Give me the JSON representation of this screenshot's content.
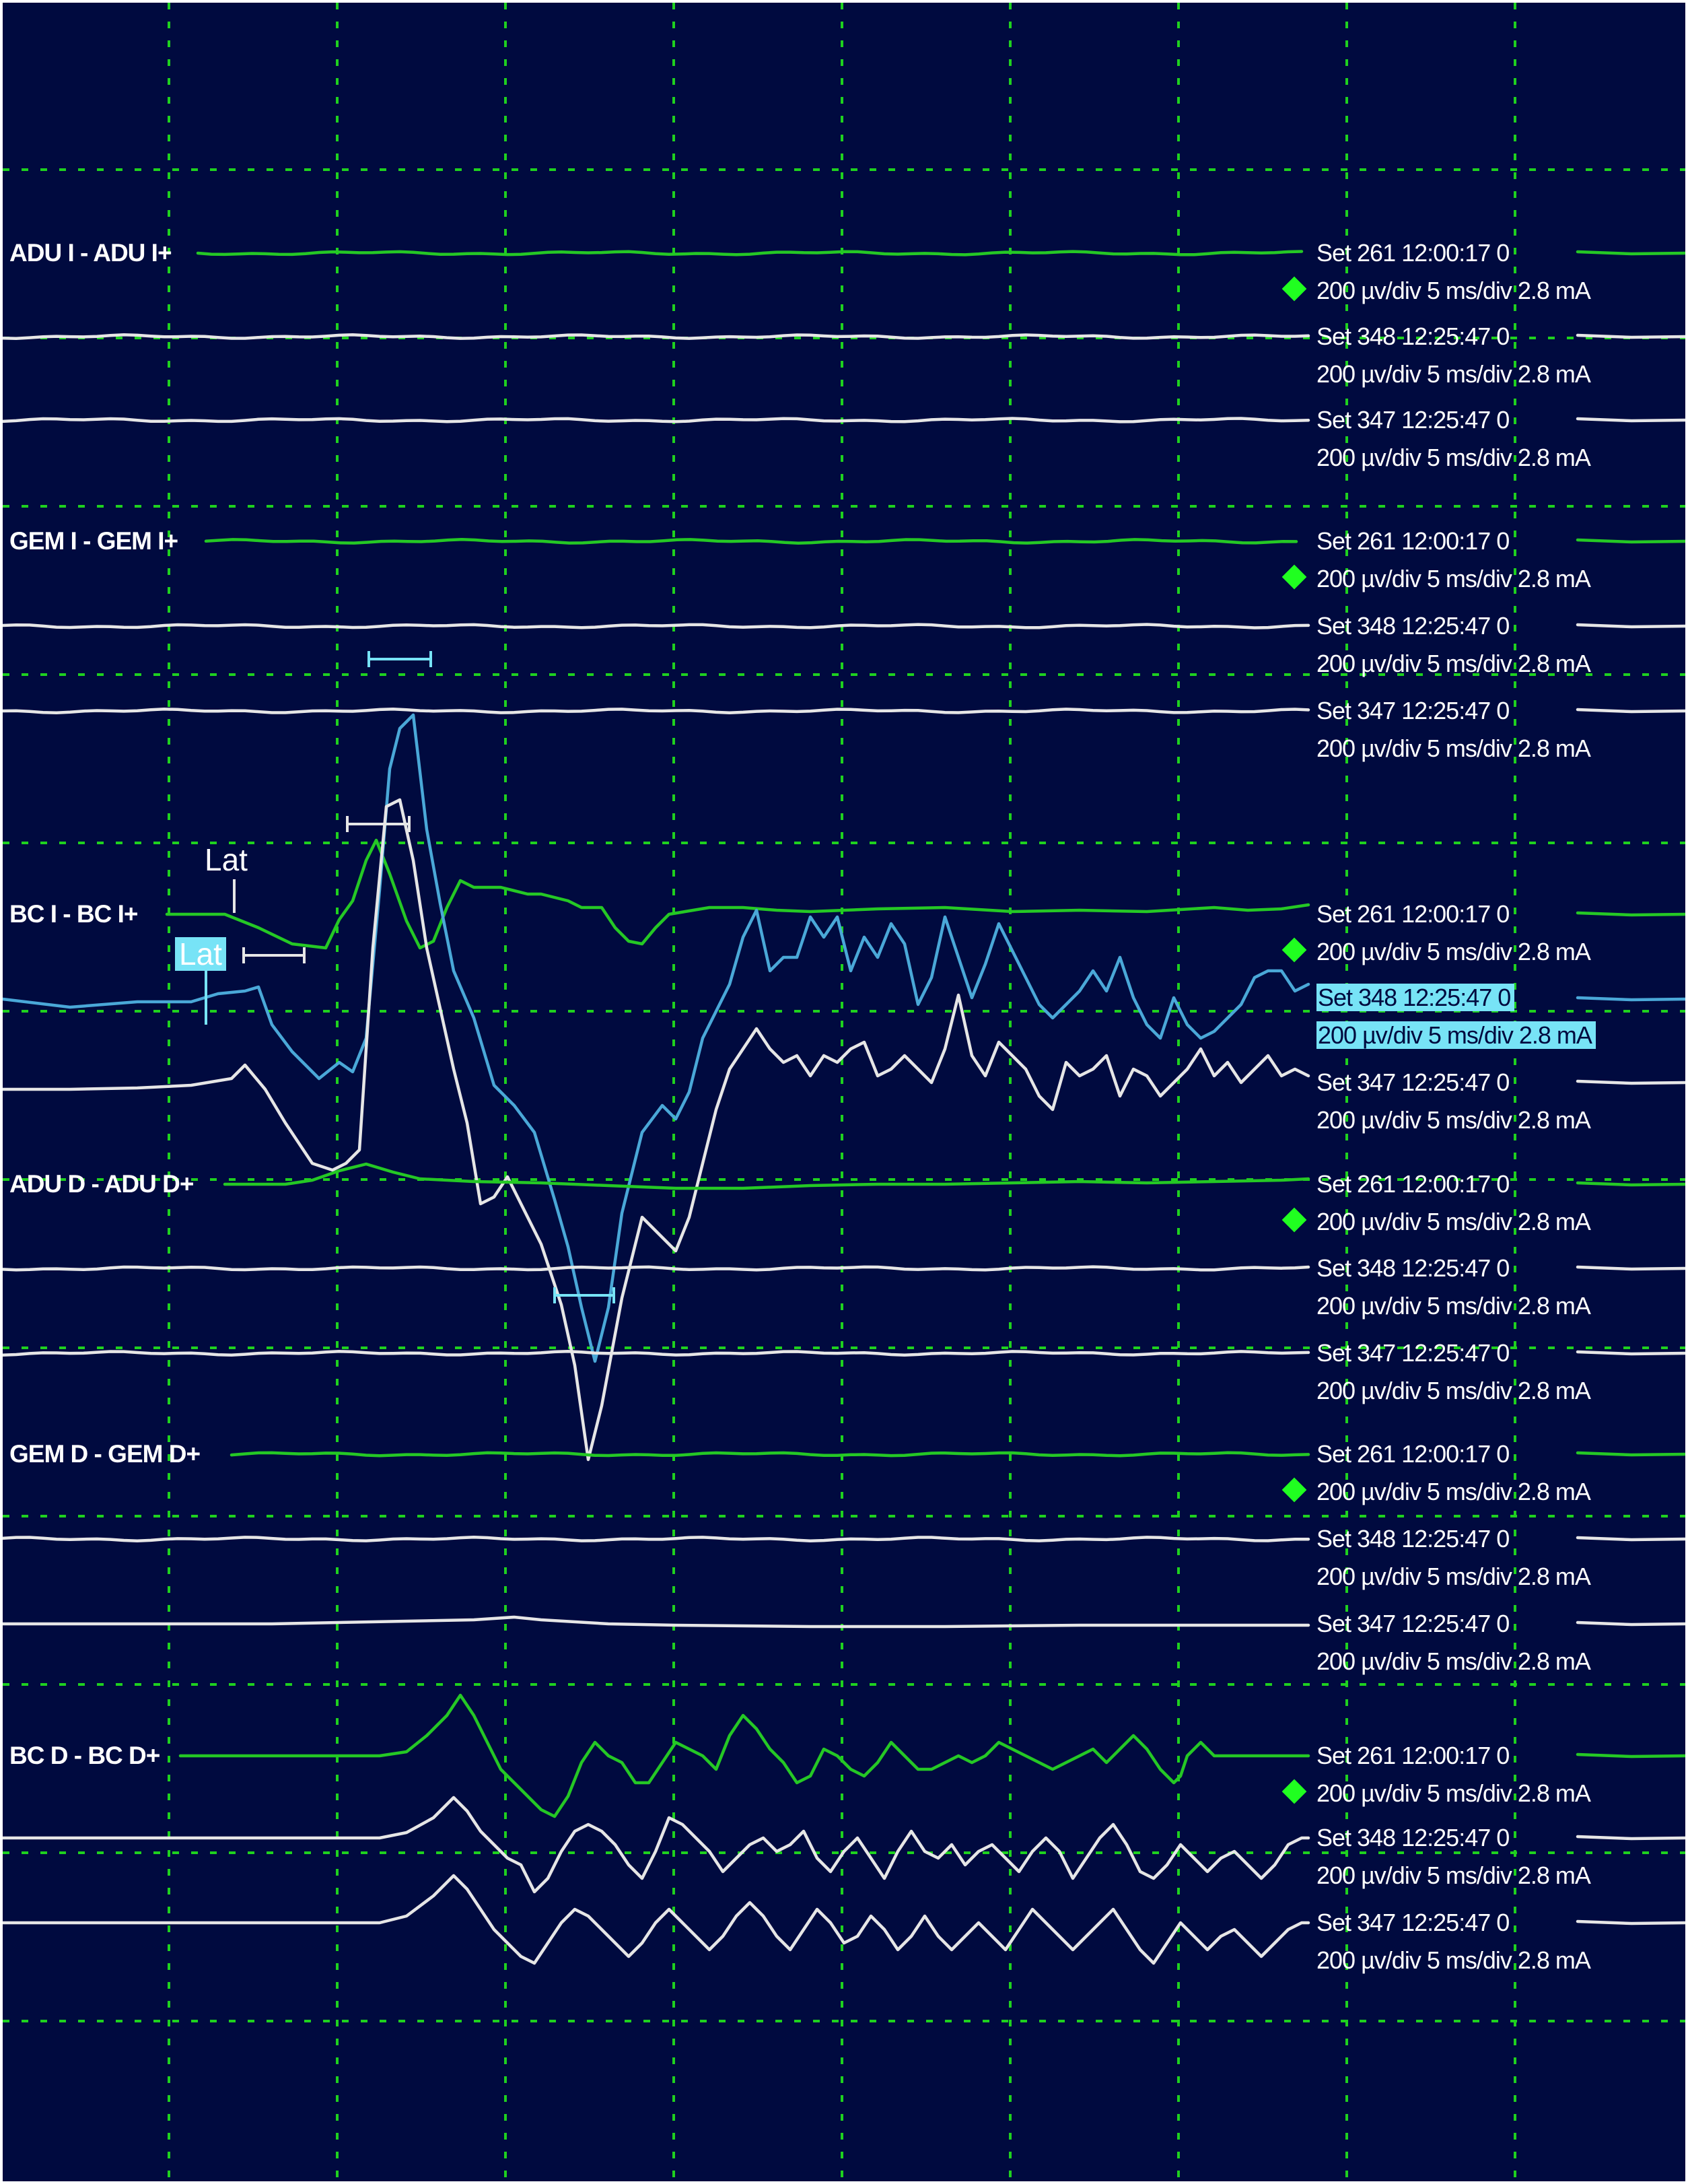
{
  "colors": {
    "background": "#000a3f",
    "grid": "#1fd11f",
    "current_trace": "#25c825",
    "baseline_trace": "#e6e6e6",
    "selected_trace": "#4aa8d8",
    "selected_highlight": "#77e3f6",
    "marker": "#20ff20"
  },
  "channels": [
    {
      "label": "ADU I - ADU I+",
      "traces": [
        {
          "set_time": "Set 261 12:00:17   0",
          "scale": "200 µv/div 5 ms/div 2.8 mA",
          "marker": "green-diamond-icon",
          "selected": false
        },
        {
          "set_time": "Set 348 12:25:47   0",
          "scale": "200 µv/div 5 ms/div 2.8 mA",
          "marker": "",
          "selected": false
        },
        {
          "set_time": "Set 347 12:25:47   0",
          "scale": "200 µv/div 5 ms/div 2.8 mA",
          "marker": "",
          "selected": false
        }
      ]
    },
    {
      "label": "GEM I - GEM I+",
      "traces": [
        {
          "set_time": "Set 261 12:00:17   0",
          "scale": "200 µv/div 5 ms/div 2.8 mA",
          "marker": "green-diamond-icon",
          "selected": false
        },
        {
          "set_time": "Set 348 12:25:47   0",
          "scale": "200 µv/div 5 ms/div 2.8 mA",
          "marker": "",
          "selected": false
        },
        {
          "set_time": "Set 347 12:25:47   0",
          "scale": "200 µv/div 5 ms/div 2.8 mA",
          "marker": "",
          "selected": false
        }
      ]
    },
    {
      "label": "BC I - BC I+",
      "traces": [
        {
          "set_time": "Set 261 12:00:17   0",
          "scale": "200 µv/div 5 ms/div 2.8 mA",
          "marker": "green-diamond-icon",
          "selected": false
        },
        {
          "set_time": "Set 348 12:25:47   0",
          "scale": "200 µv/div 5 ms/div 2.8 mA",
          "marker": "",
          "selected": true
        },
        {
          "set_time": "Set 347 12:25:47   0",
          "scale": "200 µv/div 5 ms/div 2.8 mA",
          "marker": "",
          "selected": false
        }
      ]
    },
    {
      "label": "ADU D - ADU D+",
      "traces": [
        {
          "set_time": "Set 261 12:00:17   0",
          "scale": "200 µv/div 5 ms/div 2.8 mA",
          "marker": "green-diamond-icon",
          "selected": false
        },
        {
          "set_time": "Set 348 12:25:47   0",
          "scale": "200 µv/div 5 ms/div 2.8 mA",
          "marker": "",
          "selected": false
        },
        {
          "set_time": "Set 347 12:25:47   0",
          "scale": "200 µv/div 5 ms/div 2.8 mA",
          "marker": "",
          "selected": false
        }
      ]
    },
    {
      "label": "GEM D - GEM D+",
      "traces": [
        {
          "set_time": "Set 261 12:00:17   0",
          "scale": "200 µv/div 5 ms/div 2.8 mA",
          "marker": "green-diamond-icon",
          "selected": false
        },
        {
          "set_time": "Set 348 12:25:47   0",
          "scale": "200 µv/div 5 ms/div 2.8 mA",
          "marker": "",
          "selected": false
        },
        {
          "set_time": "Set 347 12:25:47   0",
          "scale": "200 µv/div 5 ms/div 2.8 mA",
          "marker": "",
          "selected": false
        }
      ]
    },
    {
      "label": "BC D - BC D+",
      "traces": [
        {
          "set_time": "Set 261 12:00:17   0",
          "scale": "200 µv/div 5 ms/div 2.8 mA",
          "marker": "green-diamond-icon",
          "selected": false
        },
        {
          "set_time": "Set 348 12:25:47   0",
          "scale": "200 µv/div 5 ms/div 2.8 mA",
          "marker": "",
          "selected": false
        },
        {
          "set_time": "Set 347 12:25:47   0",
          "scale": "200 µv/div 5 ms/div 2.8 mA",
          "marker": "",
          "selected": false
        }
      ]
    }
  ],
  "latency_markers": {
    "current_label": "Lat",
    "selected_label": "Lat"
  }
}
